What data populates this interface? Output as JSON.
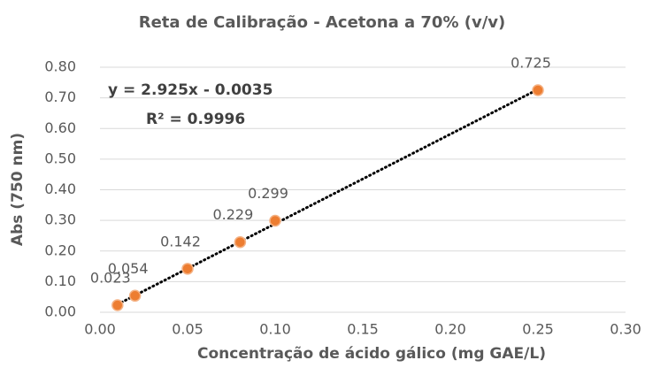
{
  "chart_data": {
    "type": "scatter",
    "title": "Reta de Calibração -  Acetona a 70% (v/v)",
    "xlabel": "Concentração de ácido gálico (mg GAE/L)",
    "ylabel": "Abs (750 nm)",
    "series": [
      {
        "name": "Abs",
        "color": "#ed7d31",
        "x": [
          0.01,
          0.02,
          0.05,
          0.08,
          0.1,
          0.25
        ],
        "values": [
          0.023,
          0.054,
          0.142,
          0.229,
          0.299,
          0.725
        ]
      }
    ],
    "trendline": {
      "equation": "y = 2.925x - 0.0035",
      "r2_label": "R² = 0.9996",
      "slope": 2.925,
      "intercept": -0.0035,
      "color": "#000000"
    },
    "xlim": [
      0,
      0.3
    ],
    "xticks": [
      {
        "value": 0,
        "label": "0.00"
      },
      {
        "value": 0.05,
        "label": "0.05"
      },
      {
        "value": 0.1,
        "label": "0.10"
      },
      {
        "value": 0.15,
        "label": "0.15"
      },
      {
        "value": 0.2,
        "label": "0.20"
      },
      {
        "value": 0.25,
        "label": "0.25"
      },
      {
        "value": 0.3,
        "label": "0.30"
      }
    ],
    "ylim": [
      0,
      0.8
    ],
    "yticks": [
      {
        "value": 0,
        "label": "0.00"
      },
      {
        "value": 0.1,
        "label": "0.10"
      },
      {
        "value": 0.2,
        "label": "0.20"
      },
      {
        "value": 0.3,
        "label": "0.30"
      },
      {
        "value": 0.4,
        "label": "0.40"
      },
      {
        "value": 0.5,
        "label": "0.50"
      },
      {
        "value": 0.6,
        "label": "0.60"
      },
      {
        "value": 0.7,
        "label": "0.70"
      },
      {
        "value": 0.8,
        "label": "0.80"
      }
    ],
    "grid": true
  }
}
